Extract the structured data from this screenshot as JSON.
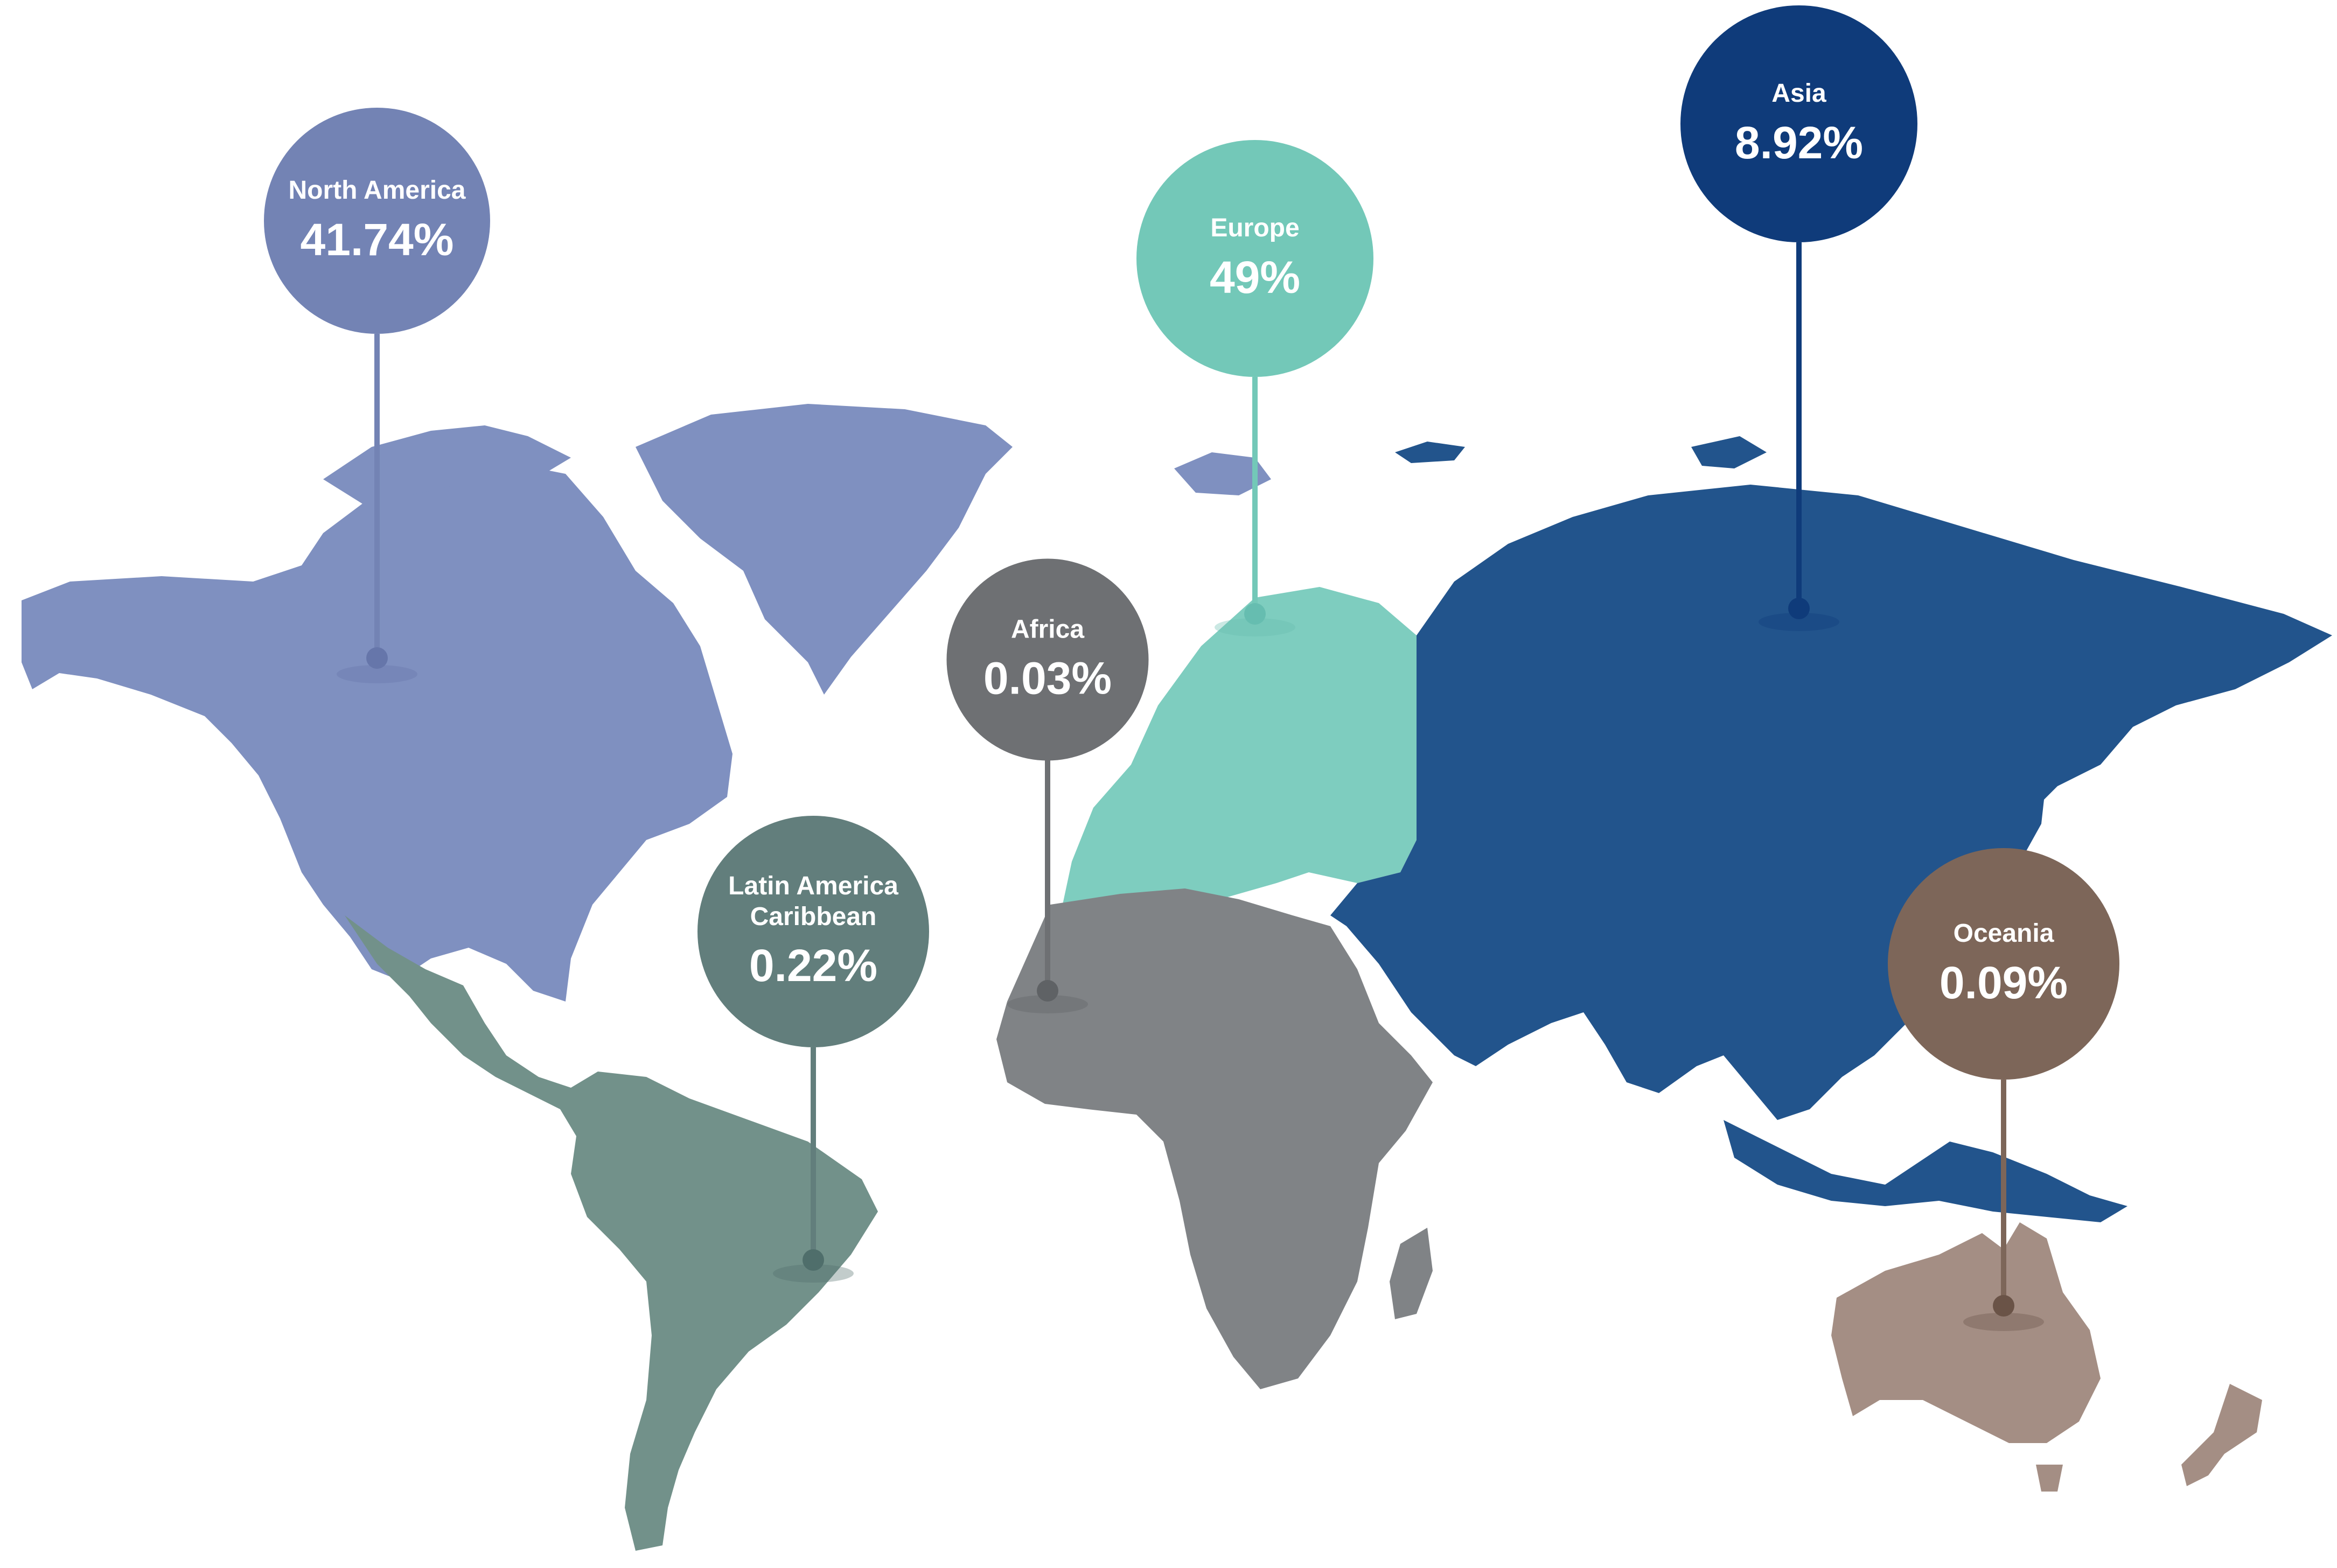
{
  "markers": [
    {
      "id": "north-america",
      "region": "North America",
      "value": "41.74%",
      "color": "#7383b4",
      "dot_color": "#6676aa"
    },
    {
      "id": "europe",
      "region": "Europe",
      "value": "49%",
      "color": "#73c8b8",
      "dot_color": "#66bdb0"
    },
    {
      "id": "asia",
      "region": "Asia",
      "value": "8.92%",
      "color": "#0f3b7a",
      "dot_color": "#0f3b7a"
    },
    {
      "id": "africa",
      "region": "Africa",
      "value": "0.03%",
      "color": "#6e7073",
      "dot_color": "#5f6265"
    },
    {
      "id": "latin-america",
      "region": "Latin America\nCaribbean",
      "value": "0.22%",
      "color": "#627e7c",
      "dot_color": "#4f6e6b"
    },
    {
      "id": "oceania",
      "region": "Oceania",
      "value": "0.09%",
      "color": "#7d6659",
      "dot_color": "#6a5347"
    }
  ],
  "region_colors": {
    "north_america": "#7f90c0",
    "latin_america": "#72918a",
    "europe": "#7ecdbf",
    "africa": "#808386",
    "asia": "#22548c",
    "oceania": "#a48e84"
  }
}
